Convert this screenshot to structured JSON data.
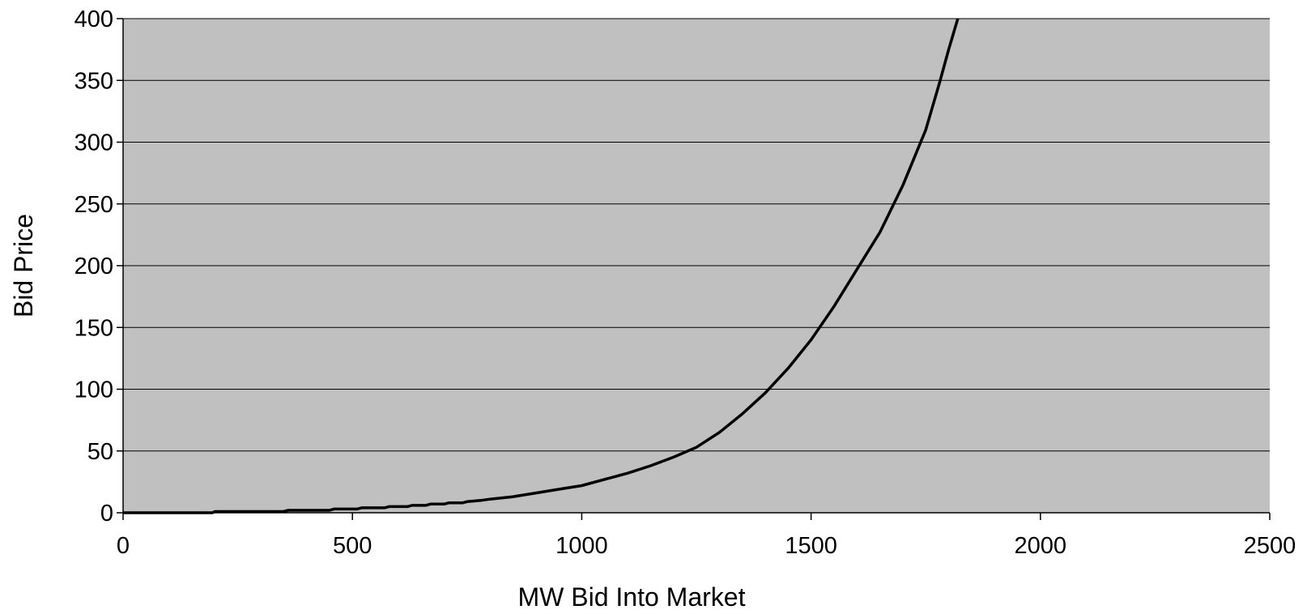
{
  "chart_data": {
    "type": "line",
    "title": "",
    "xlabel": "MW  Bid Into Market",
    "ylabel": "Bid Price",
    "xlim": [
      0,
      2500
    ],
    "ylim": [
      0,
      400
    ],
    "x_ticks": [
      "0",
      "500",
      "1000",
      "1500",
      "2000",
      "2500"
    ],
    "y_ticks": [
      "0",
      "50",
      "100",
      "150",
      "200",
      "250",
      "300",
      "350",
      "400"
    ],
    "grid": "horizontal",
    "legend": "none",
    "colors": {
      "plot_background": "#c0c0c0",
      "line": "#000000",
      "gridline": "#000000"
    },
    "series": [
      {
        "x": [
          0,
          100,
          195,
          200,
          350,
          360,
          450,
          460,
          510,
          520,
          570,
          580,
          620,
          630,
          660,
          670,
          700,
          710,
          740,
          750,
          780,
          800,
          850,
          900,
          950,
          1000,
          1050,
          1100,
          1150,
          1200,
          1250,
          1300,
          1350,
          1400,
          1450,
          1500,
          1550,
          1600,
          1650,
          1700,
          1750,
          1780,
          1800,
          1820
        ],
        "y": [
          0,
          0,
          0,
          1,
          1,
          2,
          2,
          3,
          3,
          4,
          4,
          5,
          5,
          6,
          6,
          7,
          7,
          8,
          8,
          9,
          10,
          11,
          13,
          16,
          19,
          22,
          27,
          32,
          38,
          45,
          53,
          65,
          80,
          97,
          117,
          140,
          167,
          197,
          227,
          265,
          310,
          348,
          375,
          400
        ]
      }
    ]
  }
}
